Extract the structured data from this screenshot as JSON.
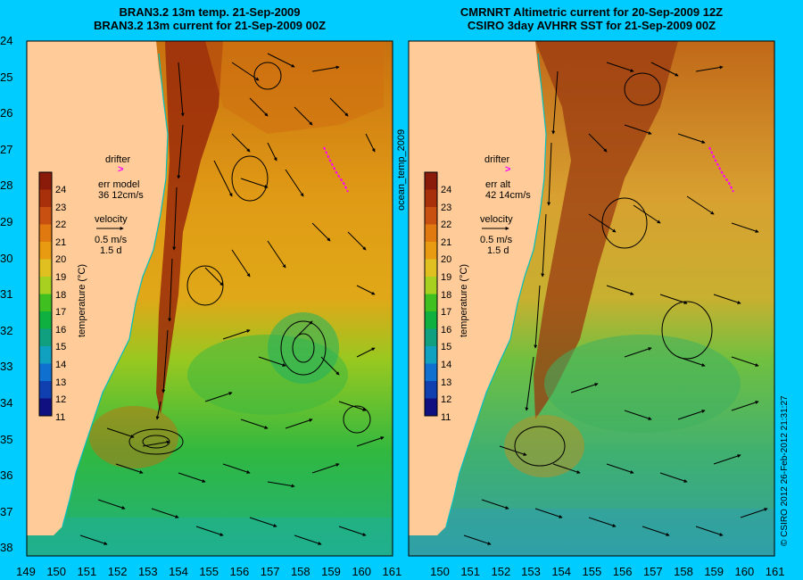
{
  "left_panel": {
    "title_line1": "BRAN3.2 13m temp. 21-Sep-2009",
    "title_line2": "BRAN3.2 13m current for 21-Sep-2009 00Z",
    "drifter_label": "drifter",
    "drifter_symbol": ">",
    "err_label": "err model",
    "err_value": "36 12cm/s",
    "velocity_label": "velocity",
    "velocity_value": "0.5 m/s",
    "velocity_days": "1.5 d"
  },
  "right_panel": {
    "title_line1": "CMRNRT Altimetric current for 20-Sep-2009 12Z",
    "title_line2": "CSIRO 3day AVHRR SST for 21-Sep-2009 00Z",
    "drifter_label": "drifter",
    "drifter_symbol": ">",
    "err_label": "err alt",
    "err_value": "42 14cm/s",
    "velocity_label": "velocity",
    "velocity_value": "0.5 m/s",
    "velocity_days": "1.5 d"
  },
  "middle_tag": "ocean_temp_2009",
  "credit": "© CSIRO 2012  26-Feb-2012 21:31:27",
  "colorbar": {
    "title": "temperature (°C)",
    "ticks": [
      "24",
      "23",
      "22",
      "21",
      "20",
      "19",
      "18",
      "17",
      "16",
      "15",
      "14",
      "13",
      "12",
      "11"
    ],
    "colors": [
      "#8a1a0a",
      "#a8300a",
      "#c85010",
      "#e07a10",
      "#e89a10",
      "#e0c020",
      "#a8d020",
      "#40c020",
      "#10b040",
      "#10a080",
      "#10a0c0",
      "#1070d0",
      "#1040b0",
      "#101080"
    ]
  },
  "lat_labels": [
    "24",
    "25",
    "26",
    "27",
    "28",
    "29",
    "30",
    "31",
    "32",
    "33",
    "34",
    "35",
    "36",
    "37",
    "38"
  ],
  "lon_labels_left": [
    "149",
    "150",
    "151",
    "152",
    "153",
    "154",
    "155",
    "156",
    "157",
    "158",
    "159",
    "160",
    "161"
  ],
  "lon_labels_right": [
    "153",
    "154",
    "155",
    "156",
    "157",
    "158",
    "159",
    "160",
    "161"
  ],
  "lon_labels_right_pre": [
    "150",
    "151",
    "152"
  ],
  "colors": {
    "background": "#00ccff",
    "land": "#ffcc99",
    "drifter": "#ff00ff"
  }
}
